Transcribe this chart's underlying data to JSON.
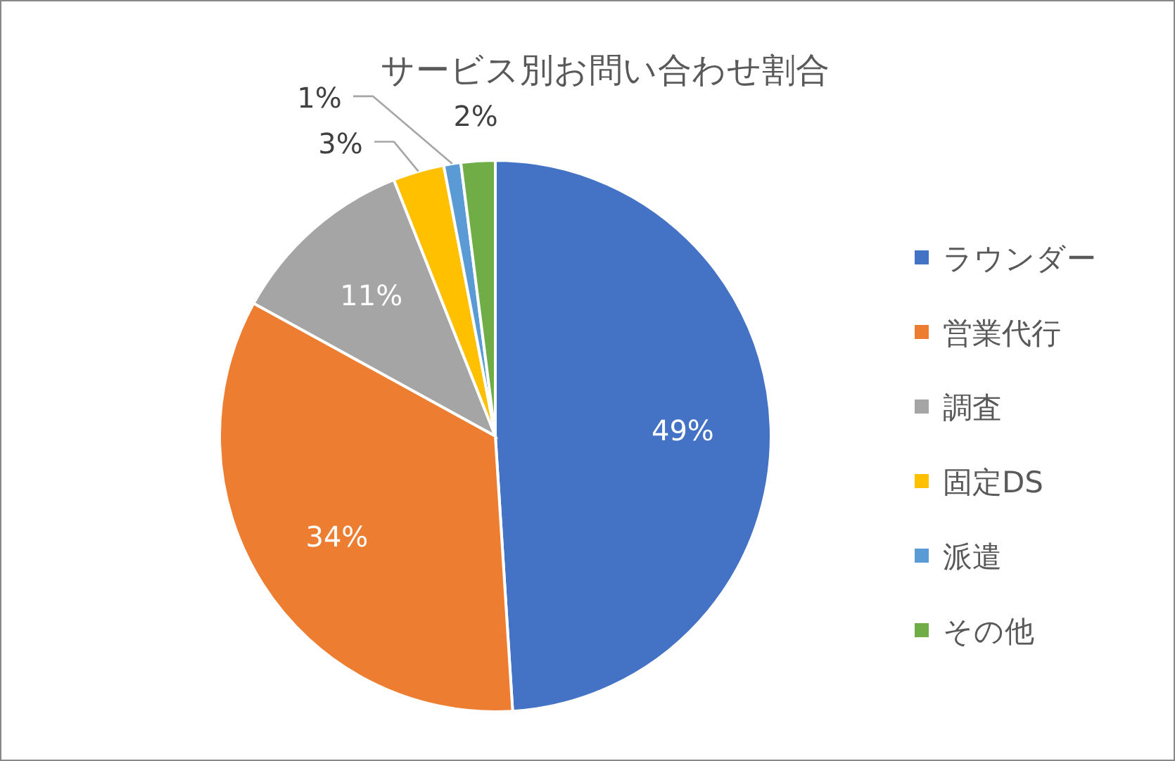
{
  "chart_data": {
    "type": "pie",
    "title": "サービス別お問い合わせ割合",
    "categories": [
      "ラウンダー",
      "営業代行",
      "調査",
      "固定DS",
      "派遣",
      "その他"
    ],
    "values": [
      49,
      34,
      11,
      3,
      1,
      2
    ],
    "colors": [
      "#4472c4",
      "#ed7d31",
      "#a5a5a5",
      "#ffc000",
      "#5b9bd5",
      "#70ad47"
    ],
    "value_labels": [
      "49%",
      "34%",
      "11%",
      "3%",
      "1%",
      "2%"
    ],
    "legend": "right"
  }
}
